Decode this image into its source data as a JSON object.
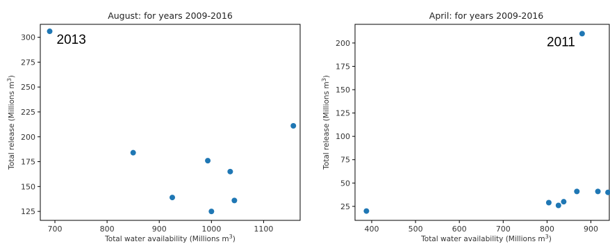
{
  "chart_data": [
    {
      "type": "scatter",
      "title": "August: for years 2009-2016",
      "xlabel": "Total water availability (Millions m",
      "xlabel_sup": "3",
      "xlabel_suffix": ")",
      "ylabel": "Total release (Millions m",
      "ylabel_sup": "3",
      "ylabel_suffix": ")",
      "xlim": [
        672,
        1170
      ],
      "ylim": [
        116,
        313
      ],
      "xticks": [
        700,
        800,
        900,
        1000,
        1100
      ],
      "yticks": [
        125,
        150,
        175,
        200,
        225,
        250,
        275,
        300
      ],
      "grid": false,
      "marker_color": "#1f77b4",
      "points": [
        {
          "x": 690,
          "y": 306
        },
        {
          "x": 850,
          "y": 184
        },
        {
          "x": 925,
          "y": 139
        },
        {
          "x": 993,
          "y": 176
        },
        {
          "x": 1000,
          "y": 125
        },
        {
          "x": 1036,
          "y": 165
        },
        {
          "x": 1044,
          "y": 136
        },
        {
          "x": 1157,
          "y": 211
        }
      ],
      "annotations": [
        {
          "text": "2013",
          "x": 690,
          "y": 306
        }
      ]
    },
    {
      "type": "scatter",
      "title": "April: for years 2009-2016",
      "xlabel": "Total water availability (Millions m",
      "xlabel_sup": "3",
      "xlabel_suffix": ")",
      "ylabel": "Total release (Millions m",
      "ylabel_sup": "3",
      "ylabel_suffix": ")",
      "xlim": [
        362,
        942
      ],
      "ylim": [
        10,
        220
      ],
      "xticks": [
        400,
        500,
        600,
        700,
        800,
        900
      ],
      "yticks": [
        25,
        50,
        75,
        100,
        125,
        150,
        175,
        200
      ],
      "grid": false,
      "marker_color": "#1f77b4",
      "points": [
        {
          "x": 388,
          "y": 20
        },
        {
          "x": 804,
          "y": 29
        },
        {
          "x": 826,
          "y": 26
        },
        {
          "x": 838,
          "y": 30
        },
        {
          "x": 868,
          "y": 41
        },
        {
          "x": 880,
          "y": 210
        },
        {
          "x": 916,
          "y": 41
        },
        {
          "x": 939,
          "y": 40
        }
      ],
      "annotations": [
        {
          "text": "2011",
          "x": 880,
          "y": 210
        }
      ]
    }
  ]
}
